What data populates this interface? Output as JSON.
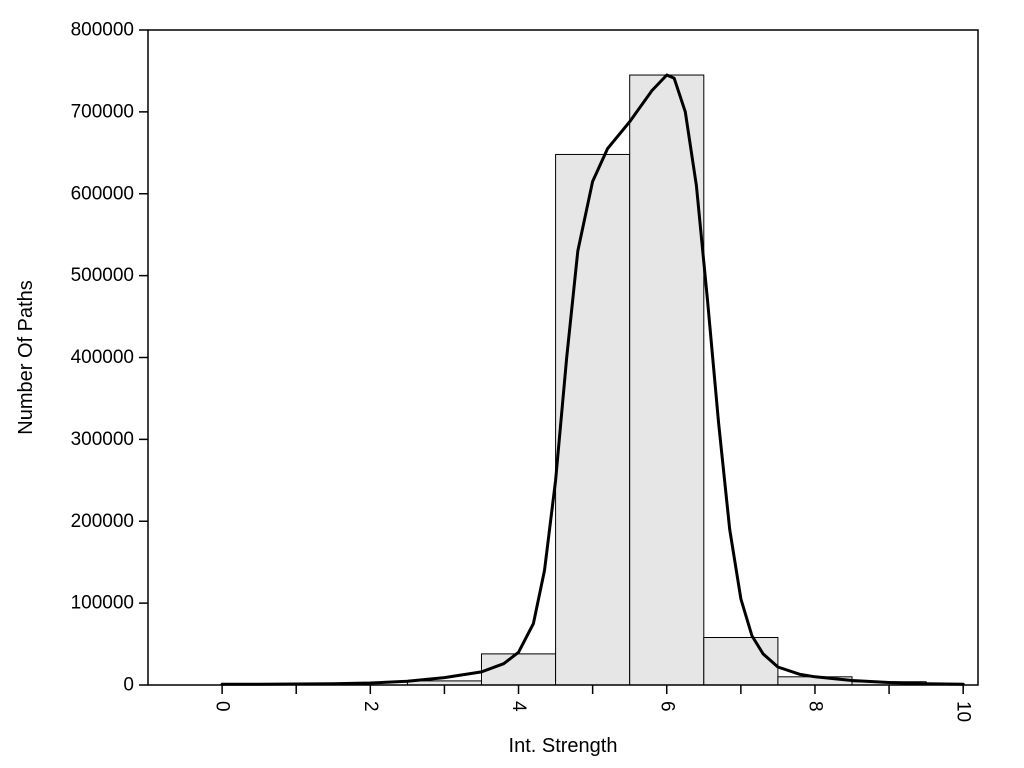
{
  "chart_data": {
    "type": "bar",
    "subtype": "histogram-with-density-curve",
    "title": "",
    "xlabel": "Int. Strength",
    "ylabel": "Number Of Paths",
    "xlim": [
      -1.0,
      10.2
    ],
    "ylim": [
      0,
      800000
    ],
    "grid": false,
    "legend": null,
    "x_ticks": [
      {
        "v": 0,
        "label": "0"
      },
      {
        "v": 1,
        "label": ""
      },
      {
        "v": 2,
        "label": "2"
      },
      {
        "v": 3,
        "label": ""
      },
      {
        "v": 4,
        "label": "4"
      },
      {
        "v": 5,
        "label": ""
      },
      {
        "v": 6,
        "label": "6"
      },
      {
        "v": 7,
        "label": ""
      },
      {
        "v": 8,
        "label": "8"
      },
      {
        "v": 9,
        "label": ""
      },
      {
        "v": 10,
        "label": "10"
      }
    ],
    "y_ticks": [
      {
        "v": 0,
        "label": "0"
      },
      {
        "v": 100000,
        "label": "100000"
      },
      {
        "v": 200000,
        "label": "200000"
      },
      {
        "v": 300000,
        "label": "300000"
      },
      {
        "v": 400000,
        "label": "400000"
      },
      {
        "v": 500000,
        "label": "500000"
      },
      {
        "v": 600000,
        "label": "600000"
      },
      {
        "v": 700000,
        "label": "700000"
      },
      {
        "v": 800000,
        "label": "800000"
      }
    ],
    "bins": [
      {
        "x0": 2.5,
        "x1": 3.5,
        "count": 5000
      },
      {
        "x0": 3.5,
        "x1": 4.5,
        "count": 38000
      },
      {
        "x0": 4.5,
        "x1": 5.5,
        "count": 648000
      },
      {
        "x0": 5.5,
        "x1": 6.5,
        "count": 745000
      },
      {
        "x0": 6.5,
        "x1": 7.5,
        "count": 58000
      },
      {
        "x0": 7.5,
        "x1": 8.5,
        "count": 10000
      },
      {
        "x0": 8.5,
        "x1": 9.5,
        "count": 4000
      }
    ],
    "curve": [
      [
        0.0,
        1000
      ],
      [
        0.5,
        1000
      ],
      [
        1.0,
        1200
      ],
      [
        1.5,
        1600
      ],
      [
        2.0,
        2500
      ],
      [
        2.5,
        4500
      ],
      [
        3.0,
        9000
      ],
      [
        3.5,
        16000
      ],
      [
        3.8,
        26000
      ],
      [
        4.0,
        40000
      ],
      [
        4.2,
        75000
      ],
      [
        4.35,
        140000
      ],
      [
        4.5,
        250000
      ],
      [
        4.65,
        400000
      ],
      [
        4.8,
        530000
      ],
      [
        5.0,
        615000
      ],
      [
        5.2,
        655000
      ],
      [
        5.5,
        688000
      ],
      [
        5.8,
        726000
      ],
      [
        6.0,
        745000
      ],
      [
        6.1,
        741000
      ],
      [
        6.25,
        700000
      ],
      [
        6.4,
        610000
      ],
      [
        6.55,
        470000
      ],
      [
        6.7,
        320000
      ],
      [
        6.85,
        190000
      ],
      [
        7.0,
        105000
      ],
      [
        7.15,
        60000
      ],
      [
        7.3,
        38000
      ],
      [
        7.5,
        22000
      ],
      [
        7.8,
        13000
      ],
      [
        8.0,
        10000
      ],
      [
        8.5,
        5500
      ],
      [
        9.0,
        3000
      ],
      [
        9.5,
        1500
      ],
      [
        10.0,
        800
      ]
    ],
    "colors": {
      "bar_fill": "#e6e6e6",
      "bar_stroke": "#000000",
      "curve": "#000000",
      "frame": "#000000",
      "background": "#ffffff"
    }
  }
}
